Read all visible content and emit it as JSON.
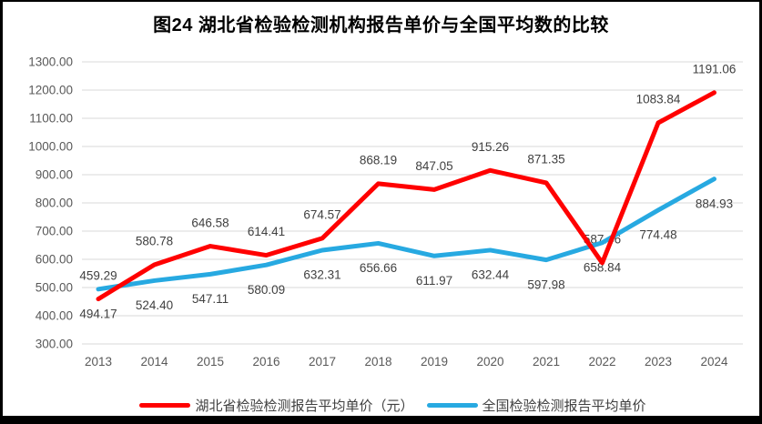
{
  "page": {
    "edge_color": "#000000",
    "background": "#ffffff"
  },
  "chart_data": {
    "type": "line",
    "title": "图24 湖北省检验检测机构报告单价与全国平均数的比较",
    "categories": [
      "2013",
      "2014",
      "2015",
      "2016",
      "2017",
      "2018",
      "2019",
      "2020",
      "2021",
      "2022",
      "2023",
      "2024"
    ],
    "series": [
      {
        "name": "湖北省检验检测报告平均单价（元）",
        "color": "#FF0000",
        "label_position": "above",
        "values": [
          459.29,
          580.78,
          646.58,
          614.41,
          674.57,
          868.19,
          847.05,
          915.26,
          871.35,
          587.46,
          1083.84,
          1191.06
        ]
      },
      {
        "name": "全国检验检测报告平均单价",
        "color": "#27A9E1",
        "label_position": "below",
        "values": [
          494.17,
          524.4,
          547.11,
          580.09,
          632.31,
          656.66,
          611.97,
          632.44,
          597.98,
          658.84,
          774.48,
          884.93
        ]
      }
    ],
    "ylim": [
      300,
      1300
    ],
    "ytick_step": 100,
    "yticks": [
      "1300.00",
      "1200.00",
      "1100.00",
      "1000.00",
      "900.00",
      "800.00",
      "700.00",
      "600.00",
      "500.00",
      "400.00",
      "300.00"
    ],
    "value_decimals": 2,
    "grid": true,
    "legend_position": "bottom",
    "colors": {
      "grid": "#D9D9D9",
      "axis_text": "#595959",
      "data_label_text": "#404040",
      "legend_text": "#404040",
      "title_text": "#000000"
    }
  }
}
